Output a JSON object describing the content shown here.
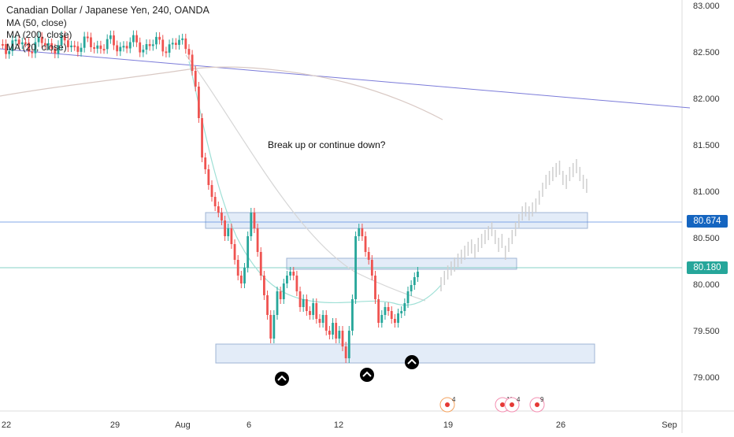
{
  "legend": {
    "title": "Canadian Dollar / Japanese Yen, 240, OANDA",
    "ma_lines": [
      "MA (50, close)",
      "MA (200, close)",
      "MA (20, close)"
    ]
  },
  "annotation": "Break up or continue down?",
  "price_axis": {
    "ticks": [
      "83.000",
      "82.500",
      "82.000",
      "81.500",
      "81.000",
      "80.500",
      "80.000",
      "79.500",
      "79.000"
    ],
    "levels": [
      "80.674",
      "80.180"
    ]
  },
  "time_axis": {
    "ticks": [
      "22",
      "29",
      "Aug",
      "6",
      "12",
      "19",
      "26",
      "Sep"
    ]
  },
  "events": [
    {
      "count": "4"
    },
    {
      "count": "11"
    },
    {
      "count": "4"
    },
    {
      "count": "9"
    }
  ],
  "colors": {
    "up": "#26a69a",
    "down": "#ef5350",
    "trendline": "#7b7bd9",
    "level_blue": "#1565c0",
    "level_green": "#26a69a",
    "zone_fill": "#e3ecf8",
    "zone_border": "#9fb4d4"
  },
  "icons": {
    "swing_low_marker": "chevron-up-icon",
    "event_marker": "economic-event-icon"
  }
}
